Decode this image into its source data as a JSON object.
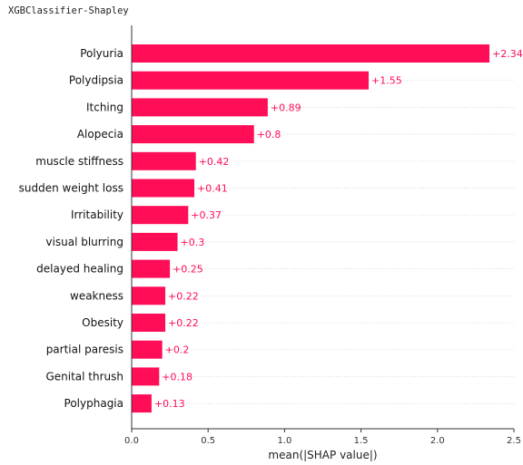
{
  "header": {
    "title": "XGBClassifier-Shapley"
  },
  "colors": {
    "bar": "#ff0d57",
    "value_label": "#ff0d57",
    "axis": "#333333",
    "gridline": "#cccccc"
  },
  "chart_data": {
    "type": "bar",
    "orientation": "horizontal",
    "categories": [
      "Polyuria",
      "Polydipsia",
      "Itching",
      "Alopecia",
      "muscle stiffness",
      "sudden weight loss",
      "Irritability",
      "visual blurring",
      "delayed healing",
      "weakness",
      "Obesity",
      "partial paresis",
      "Genital thrush",
      "Polyphagia"
    ],
    "values": [
      2.34,
      1.55,
      0.89,
      0.8,
      0.42,
      0.41,
      0.37,
      0.3,
      0.25,
      0.22,
      0.22,
      0.2,
      0.18,
      0.13
    ],
    "value_labels": [
      "+2.34",
      "+1.55",
      "+0.89",
      "+0.8",
      "+0.42",
      "+0.41",
      "+0.37",
      "+0.3",
      "+0.25",
      "+0.22",
      "+0.22",
      "+0.2",
      "+0.18",
      "+0.13"
    ],
    "xlabel": "mean(|SHAP value|)",
    "ylabel": "",
    "xlim": [
      0,
      2.5
    ],
    "xticks": [
      0.0,
      0.5,
      1.0,
      1.5,
      2.0,
      2.5
    ],
    "xtick_labels": [
      "0.0",
      "0.5",
      "1.0",
      "1.5",
      "2.0",
      "2.5"
    ],
    "grid": "horizontal dotted lines per category",
    "legend": "none"
  }
}
